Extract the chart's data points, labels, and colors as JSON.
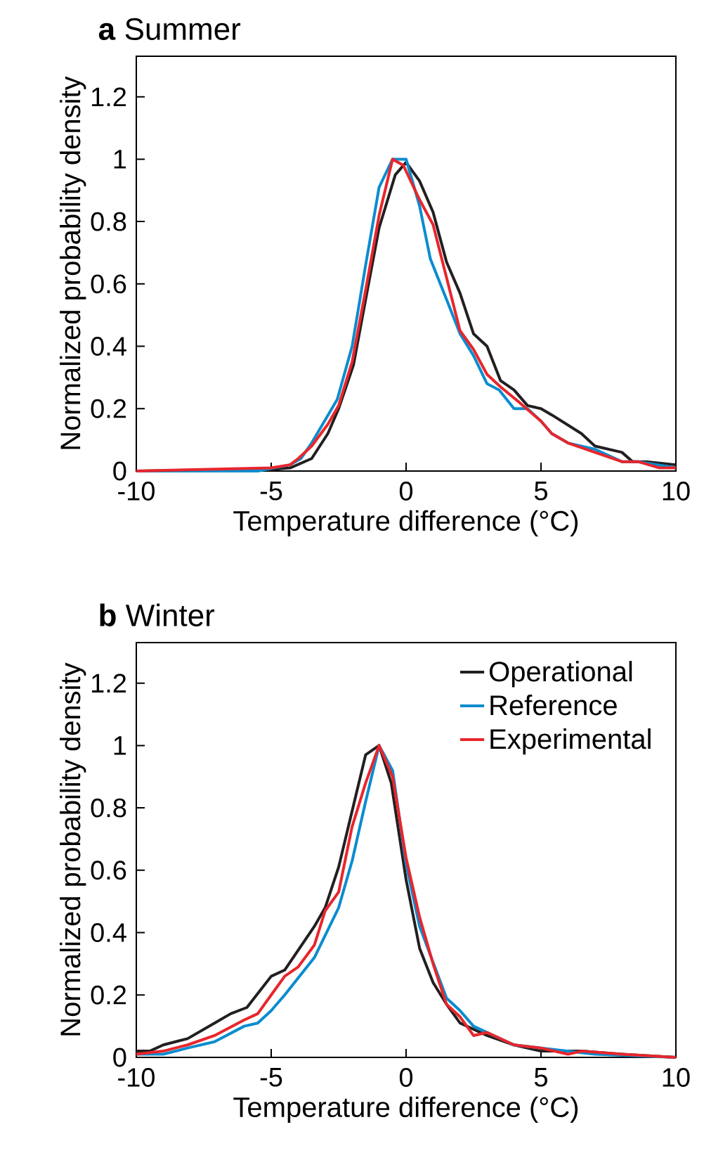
{
  "chart_data": [
    {
      "type": "line",
      "title": "**a**  Summer",
      "xlabel": "Temperature difference (°C)",
      "ylabel": "Normalized probability density",
      "xlim": [
        -10,
        10
      ],
      "ylim": [
        0,
        1.33
      ],
      "xticks": [
        -10,
        -5,
        0,
        5,
        10
      ],
      "yticks": [
        0,
        0.2,
        0.4,
        0.6,
        0.8,
        1,
        1.2
      ],
      "series": [
        {
          "color": "#231f20",
          "x": [
            -10,
            -5,
            -4.3,
            -3.5,
            -2.9,
            -2.5,
            -1.95,
            -1.5,
            -1.0,
            -0.4,
            0,
            0.5,
            1.0,
            1.5,
            2.0,
            2.5,
            3.0,
            3.5,
            4.0,
            4.5,
            5.0,
            5.4,
            6.5,
            7.0,
            8.0,
            8.4,
            8.9,
            10
          ],
          "values": [
            0,
            0.005,
            0.01,
            0.04,
            0.12,
            0.2,
            0.34,
            0.55,
            0.78,
            0.95,
            0.99,
            0.93,
            0.83,
            0.67,
            0.57,
            0.44,
            0.4,
            0.29,
            0.26,
            0.21,
            0.2,
            0.18,
            0.12,
            0.08,
            0.06,
            0.03,
            0.03,
            0.02
          ]
        },
        {
          "color": "#0a8ccf",
          "x": [
            -10,
            -5.5,
            -4.3,
            -3.9,
            -3.5,
            -2.55,
            -2.0,
            -1.5,
            -1.0,
            -0.5,
            0,
            0.5,
            0.9,
            1.5,
            2.0,
            2.5,
            3.0,
            3.45,
            4.0,
            4.5,
            5.0,
            5.4,
            6.0,
            7.0,
            8.0,
            8.6,
            10
          ],
          "values": [
            0,
            0,
            0.02,
            0.04,
            0.09,
            0.23,
            0.4,
            0.66,
            0.91,
            1.0,
            1.0,
            0.85,
            0.68,
            0.55,
            0.44,
            0.37,
            0.28,
            0.26,
            0.2,
            0.2,
            0.16,
            0.12,
            0.09,
            0.07,
            0.03,
            0.03,
            0.01
          ]
        },
        {
          "color": "#e8262c",
          "x": [
            -10,
            -5,
            -4.3,
            -4,
            -3.5,
            -2.9,
            -2.5,
            -2.0,
            -1.5,
            -1.0,
            -0.5,
            -0.1,
            0.5,
            1.0,
            1.5,
            2.0,
            2.5,
            3.0,
            3.5,
            4.2,
            5.0,
            5.4,
            6.0,
            7.0,
            8.0,
            8.6,
            9.4,
            10
          ],
          "values": [
            0,
            0.01,
            0.02,
            0.04,
            0.08,
            0.15,
            0.21,
            0.35,
            0.58,
            0.82,
            1.0,
            0.98,
            0.87,
            0.79,
            0.62,
            0.45,
            0.39,
            0.31,
            0.27,
            0.22,
            0.16,
            0.12,
            0.09,
            0.06,
            0.03,
            0.03,
            0.01,
            0.01
          ]
        }
      ]
    },
    {
      "type": "line",
      "title": "**b**  Winter",
      "xlabel": "Temperature difference (°C)",
      "ylabel": "Normalized probability density",
      "xlim": [
        -10,
        10
      ],
      "ylim": [
        0,
        1.33
      ],
      "xticks": [
        -10,
        -5,
        0,
        5,
        10
      ],
      "yticks": [
        0,
        0.2,
        0.4,
        0.6,
        0.8,
        1,
        1.2
      ],
      "legend": "top right",
      "series": [
        {
          "name": "Operational",
          "color": "#231f20",
          "x": [
            -10,
            -9.5,
            -9,
            -8.1,
            -7.1,
            -6.5,
            -5.9,
            -5.0,
            -4.5,
            -3.4,
            -3.0,
            -2.5,
            -2.0,
            -1.5,
            -1.0,
            -0.55,
            0,
            0.5,
            1.0,
            1.5,
            2.0,
            2.5,
            3.0,
            4.0,
            5.0,
            6.5,
            8.0,
            10
          ],
          "values": [
            0.02,
            0.02,
            0.04,
            0.06,
            0.11,
            0.14,
            0.16,
            0.26,
            0.28,
            0.42,
            0.48,
            0.61,
            0.79,
            0.97,
            1.0,
            0.88,
            0.57,
            0.35,
            0.24,
            0.17,
            0.11,
            0.09,
            0.07,
            0.04,
            0.02,
            0.02,
            0.01,
            0
          ]
        },
        {
          "name": "Reference",
          "color": "#0a8ccf",
          "x": [
            -10,
            -9,
            -8.1,
            -7.1,
            -6.0,
            -5.5,
            -5.0,
            -4.5,
            -3.4,
            -2.5,
            -2.0,
            -1.5,
            -1.0,
            -0.5,
            0,
            0.5,
            1.5,
            2.0,
            2.5,
            3.0,
            4.0,
            5.0,
            7.0,
            10
          ],
          "values": [
            0.01,
            0.01,
            0.03,
            0.05,
            0.1,
            0.11,
            0.15,
            0.2,
            0.32,
            0.48,
            0.63,
            0.82,
            1.0,
            0.92,
            0.62,
            0.42,
            0.19,
            0.15,
            0.1,
            0.08,
            0.04,
            0.03,
            0.01,
            0
          ]
        },
        {
          "name": "Experimental",
          "color": "#e8262c",
          "x": [
            -10,
            -9,
            -8.1,
            -7.1,
            -6.0,
            -5.5,
            -5.0,
            -4.5,
            -4.0,
            -3.4,
            -3.0,
            -2.5,
            -2.0,
            -1.5,
            -1.0,
            -0.5,
            0,
            0.5,
            1.0,
            1.5,
            2.0,
            2.5,
            3.0,
            4.0,
            5.0,
            6.0,
            6.5,
            8.0,
            10
          ],
          "values": [
            0.01,
            0.02,
            0.04,
            0.07,
            0.12,
            0.14,
            0.2,
            0.26,
            0.29,
            0.36,
            0.47,
            0.53,
            0.74,
            0.88,
            1.0,
            0.9,
            0.64,
            0.45,
            0.3,
            0.17,
            0.13,
            0.07,
            0.08,
            0.04,
            0.03,
            0.01,
            0.02,
            0.01,
            0
          ]
        }
      ]
    }
  ]
}
